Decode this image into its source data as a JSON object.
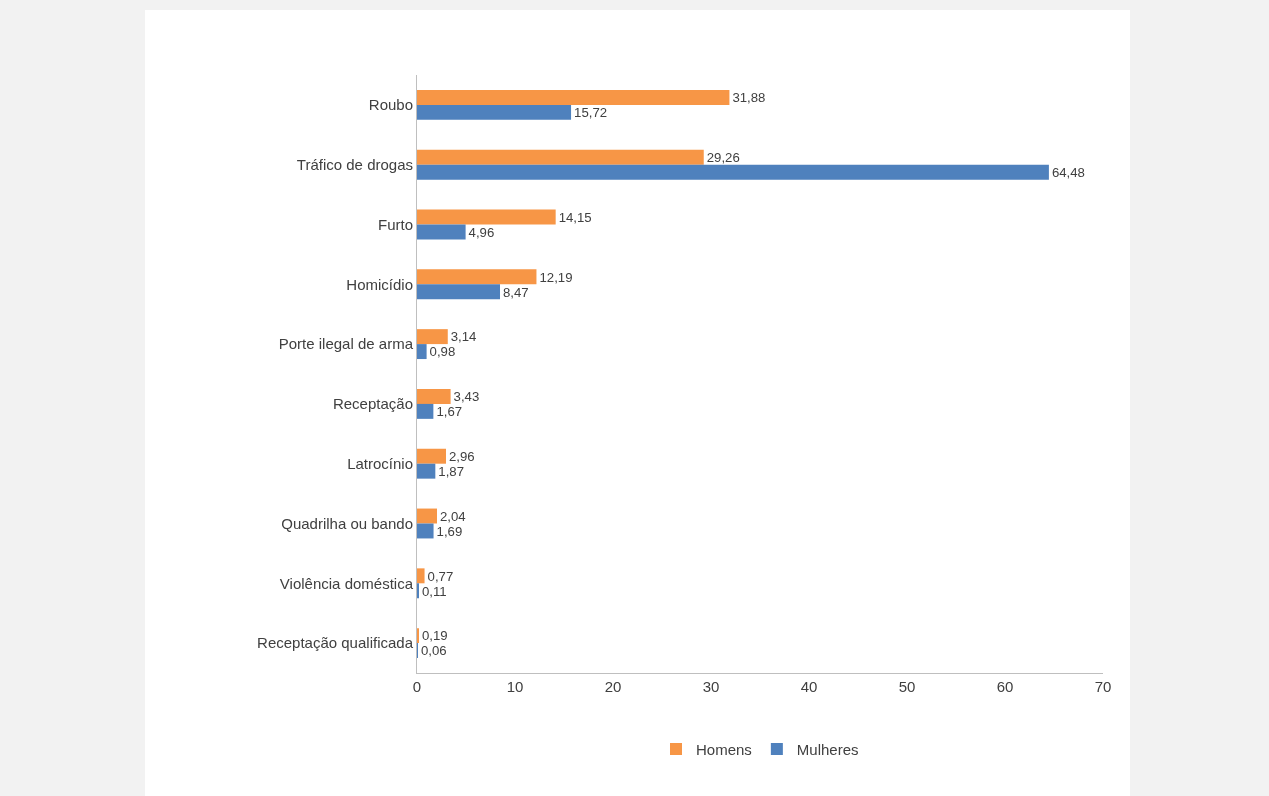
{
  "chart_data": {
    "type": "bar",
    "orientation": "horizontal",
    "categories": [
      "Roubo",
      "Tráfico de drogas",
      "Furto",
      "Homicídio",
      "Porte ilegal de arma",
      "Receptação",
      "Latrocínio",
      "Quadrilha ou bando",
      "Violência doméstica",
      "Receptação qualificada"
    ],
    "series": [
      {
        "name": "Homens",
        "color": "#f79646",
        "values": [
          31.88,
          29.26,
          14.15,
          12.19,
          3.14,
          3.43,
          2.96,
          2.04,
          0.77,
          0.19
        ],
        "value_labels": [
          "31,88",
          "29,26",
          "14,15",
          "12,19",
          "3,14",
          "3,43",
          "2,96",
          "2,04",
          "0,77",
          "0,19"
        ]
      },
      {
        "name": "Mulheres",
        "color": "#4f81bd",
        "values": [
          15.72,
          64.48,
          4.96,
          8.47,
          0.98,
          1.67,
          1.87,
          1.69,
          0.11,
          0.06
        ],
        "value_labels": [
          "15,72",
          "64,48",
          "4,96",
          "8,47",
          "0,98",
          "1,67",
          "1,87",
          "1,69",
          "0,11",
          "0,06"
        ]
      }
    ],
    "xlim": [
      0,
      70
    ],
    "xticks": [
      0,
      10,
      20,
      30,
      40,
      50,
      60,
      70
    ],
    "grid": false,
    "legend": "bottom"
  }
}
